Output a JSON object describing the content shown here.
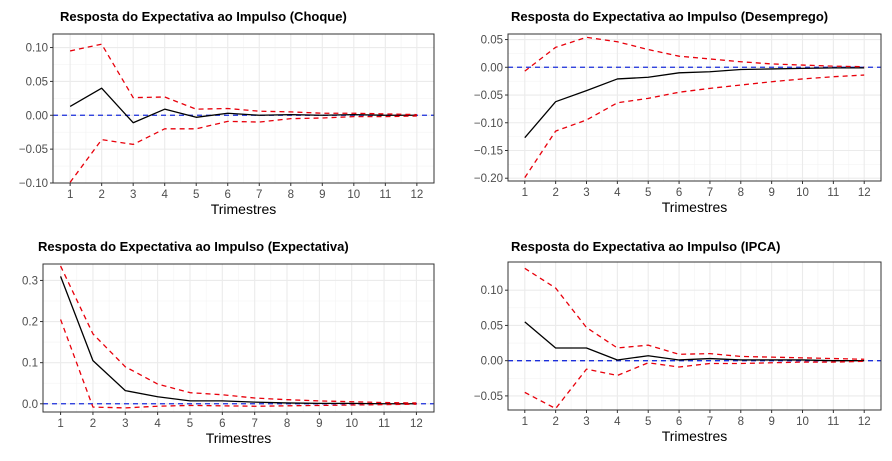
{
  "chart_data": [
    {
      "type": "line",
      "title": "Resposta do Expectativa ao Impulso (Choque)",
      "xlabel": "Trimestres",
      "ylabel": "",
      "x": [
        1,
        2,
        3,
        4,
        5,
        6,
        7,
        8,
        9,
        10,
        11,
        12
      ],
      "xlim": [
        1,
        12
      ],
      "ylim": [
        -0.1,
        0.12
      ],
      "yticks": [
        -0.1,
        -0.05,
        0.0,
        0.05,
        0.1
      ],
      "ytick_labels": [
        "−0.10",
        "−0.05",
        "0.00",
        "0.05",
        "0.10"
      ],
      "zero_line": 0,
      "grid": true,
      "series": [
        {
          "role": "irf",
          "color": "#000000",
          "style": "solid",
          "values": [
            0.013,
            0.04,
            -0.011,
            0.009,
            -0.003,
            0.003,
            0.0,
            0.001,
            0.0,
            0.001,
            0.0,
            0.0
          ]
        },
        {
          "role": "upper",
          "color": "#e8000b",
          "style": "dashed",
          "values": [
            0.095,
            0.105,
            0.026,
            0.027,
            0.009,
            0.01,
            0.006,
            0.005,
            0.003,
            0.003,
            0.002,
            0.001
          ]
        },
        {
          "role": "lower",
          "color": "#e8000b",
          "style": "dashed",
          "values": [
            -0.099,
            -0.036,
            -0.043,
            -0.02,
            -0.02,
            -0.009,
            -0.01,
            -0.005,
            -0.004,
            -0.002,
            -0.002,
            -0.001
          ]
        }
      ]
    },
    {
      "type": "line",
      "title": "Resposta do Expectativa ao Impulso (Desemprego)",
      "xlabel": "Trimestres",
      "ylabel": "",
      "x": [
        1,
        2,
        3,
        4,
        5,
        6,
        7,
        8,
        9,
        10,
        11,
        12
      ],
      "xlim": [
        1,
        12
      ],
      "ylim": [
        -0.205,
        0.06
      ],
      "yticks": [
        -0.2,
        -0.15,
        -0.1,
        -0.05,
        0.0,
        0.05
      ],
      "ytick_labels": [
        "−0.20",
        "−0.15",
        "−0.10",
        "−0.05",
        "0.00",
        "0.05"
      ],
      "zero_line": 0,
      "grid": true,
      "series": [
        {
          "role": "irf",
          "color": "#000000",
          "style": "solid",
          "values": [
            -0.127,
            -0.062,
            -0.042,
            -0.021,
            -0.018,
            -0.01,
            -0.008,
            -0.004,
            -0.003,
            -0.002,
            -0.001,
            -0.001
          ]
        },
        {
          "role": "upper",
          "color": "#e8000b",
          "style": "dashed",
          "values": [
            -0.007,
            0.036,
            0.054,
            0.046,
            0.032,
            0.02,
            0.015,
            0.01,
            0.006,
            0.004,
            0.002,
            0.001
          ]
        },
        {
          "role": "lower",
          "color": "#e8000b",
          "style": "dashed",
          "values": [
            -0.199,
            -0.115,
            -0.095,
            -0.064,
            -0.056,
            -0.045,
            -0.038,
            -0.032,
            -0.026,
            -0.021,
            -0.017,
            -0.014
          ]
        }
      ]
    },
    {
      "type": "line",
      "title": "Resposta do Expectativa ao Impulso (Expectativa)",
      "xlabel": "Trimestres",
      "ylabel": "",
      "x": [
        1,
        2,
        3,
        4,
        5,
        6,
        7,
        8,
        9,
        10,
        11,
        12
      ],
      "xlim": [
        1,
        12
      ],
      "ylim": [
        -0.02,
        0.34
      ],
      "yticks": [
        0.0,
        0.1,
        0.2,
        0.3
      ],
      "ytick_labels": [
        "0.0",
        "0.1",
        "0.2",
        "0.3"
      ],
      "zero_line": 0,
      "grid": true,
      "series": [
        {
          "role": "irf",
          "color": "#000000",
          "style": "solid",
          "values": [
            0.31,
            0.105,
            0.032,
            0.017,
            0.007,
            0.007,
            0.004,
            0.002,
            0.001,
            0.001,
            0.0,
            0.0
          ]
        },
        {
          "role": "upper",
          "color": "#e8000b",
          "style": "dashed",
          "values": [
            0.335,
            0.17,
            0.09,
            0.048,
            0.027,
            0.022,
            0.014,
            0.01,
            0.007,
            0.005,
            0.003,
            0.002
          ]
        },
        {
          "role": "lower",
          "color": "#e8000b",
          "style": "dashed",
          "values": [
            0.205,
            -0.008,
            -0.01,
            -0.006,
            -0.004,
            -0.005,
            -0.006,
            -0.005,
            -0.004,
            -0.003,
            -0.002,
            -0.001
          ]
        }
      ]
    },
    {
      "type": "line",
      "title": "Resposta do Expectativa ao Impulso (IPCA)",
      "xlabel": "Trimestres",
      "ylabel": "",
      "x": [
        1,
        2,
        3,
        4,
        5,
        6,
        7,
        8,
        9,
        10,
        11,
        12
      ],
      "xlim": [
        1,
        12
      ],
      "ylim": [
        -0.07,
        0.14
      ],
      "yticks": [
        -0.05,
        0.0,
        0.05,
        0.1
      ],
      "ytick_labels": [
        "−0.05",
        "0.00",
        "0.05",
        "0.10"
      ],
      "zero_line": 0,
      "grid": true,
      "series": [
        {
          "role": "irf",
          "color": "#000000",
          "style": "solid",
          "values": [
            0.055,
            0.018,
            0.018,
            0.001,
            0.007,
            0.001,
            0.003,
            0.001,
            0.001,
            0.001,
            0.0,
            0.0
          ]
        },
        {
          "role": "upper",
          "color": "#e8000b",
          "style": "dashed",
          "values": [
            0.131,
            0.103,
            0.047,
            0.018,
            0.022,
            0.009,
            0.01,
            0.006,
            0.005,
            0.004,
            0.003,
            0.002
          ]
        },
        {
          "role": "lower",
          "color": "#e8000b",
          "style": "dashed",
          "values": [
            -0.045,
            -0.068,
            -0.012,
            -0.021,
            -0.003,
            -0.009,
            -0.004,
            -0.004,
            -0.003,
            -0.002,
            -0.002,
            -0.001
          ]
        }
      ]
    }
  ],
  "colors": {
    "zero_line": "#1a2edb",
    "grid": "#ebebeb",
    "axis_text": "#4d4d4d",
    "text": "#000000"
  }
}
